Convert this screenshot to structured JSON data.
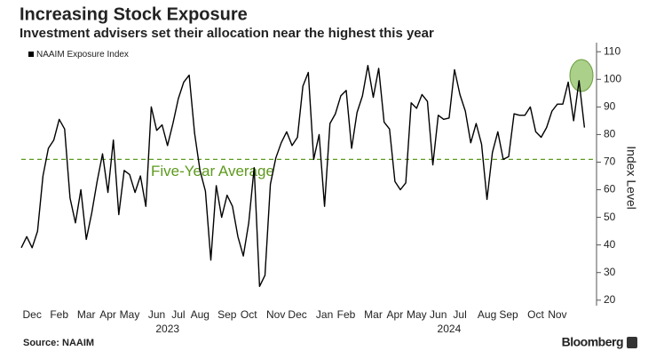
{
  "chart_data": {
    "type": "line",
    "title": "Increasing Stock Exposure",
    "subtitle": "Investment advisers set their allocation near the highest this year",
    "y_axis_label": "Index Level",
    "source": "Source: NAAIM",
    "brand": "Bloomberg",
    "legend_position": "top-left",
    "categories": [
      null,
      null,
      "Dec",
      null,
      null,
      null,
      null,
      "Feb",
      null,
      null,
      null,
      null,
      "Mar",
      null,
      null,
      null,
      "Apr",
      null,
      null,
      null,
      "May",
      null,
      null,
      null,
      null,
      "Jun",
      null,
      null,
      null,
      "Jul",
      null,
      null,
      null,
      "Aug",
      null,
      null,
      null,
      null,
      "Sep",
      null,
      null,
      null,
      "Oct",
      null,
      null,
      null,
      null,
      "Nov",
      null,
      null,
      null,
      "Dec",
      null,
      null,
      null,
      null,
      "Jan",
      null,
      null,
      null,
      "Feb",
      null,
      null,
      null,
      null,
      "Mar",
      null,
      null,
      null,
      "Apr",
      null,
      null,
      null,
      "May",
      null,
      null,
      null,
      "Jun",
      null,
      null,
      null,
      "Jul",
      null,
      null,
      null,
      null,
      "Aug",
      null,
      null,
      null,
      "Sep",
      null,
      null,
      null,
      null,
      "Oct",
      null,
      null,
      null,
      "Nov",
      null,
      null,
      null,
      null,
      null
    ],
    "years": [
      "2023",
      "2024"
    ],
    "series": [
      {
        "name": "NAAIM Exposure Index",
        "color": "#000000",
        "values": [
          39,
          43,
          39,
          45,
          65,
          75,
          78,
          85.5,
          82,
          57,
          48,
          60,
          42,
          51.5,
          63,
          73,
          59,
          78,
          51,
          67,
          65.5,
          59,
          65,
          54,
          90,
          81.5,
          83.5,
          76,
          84,
          93,
          99,
          101.5,
          80.5,
          67,
          59.5,
          34.5,
          61.5,
          50,
          58,
          54,
          43,
          36,
          48,
          68,
          25,
          29,
          62,
          71.5,
          77,
          81,
          76,
          79,
          97.5,
          102.5,
          71,
          80,
          54,
          84,
          87.5,
          94,
          96,
          75,
          88,
          94,
          105,
          93.5,
          104,
          84.5,
          82,
          63,
          60,
          62.5,
          91.5,
          89.5,
          94.5,
          92,
          69,
          87,
          85.5,
          86,
          103.5,
          94.5,
          88.5,
          77,
          84,
          76.5,
          56.5,
          73.5,
          81,
          71,
          72,
          87.5,
          87,
          87,
          90,
          81,
          79,
          82.5,
          88.5,
          91,
          91,
          99,
          85,
          99.5,
          82.5
        ]
      }
    ],
    "average": {
      "label": "Five-Year Average",
      "value": 71,
      "color": "#5e9a1e"
    },
    "ylim": [
      18,
      112
    ],
    "yticks": [
      20,
      30,
      40,
      50,
      60,
      70,
      80,
      90,
      100,
      110
    ]
  }
}
